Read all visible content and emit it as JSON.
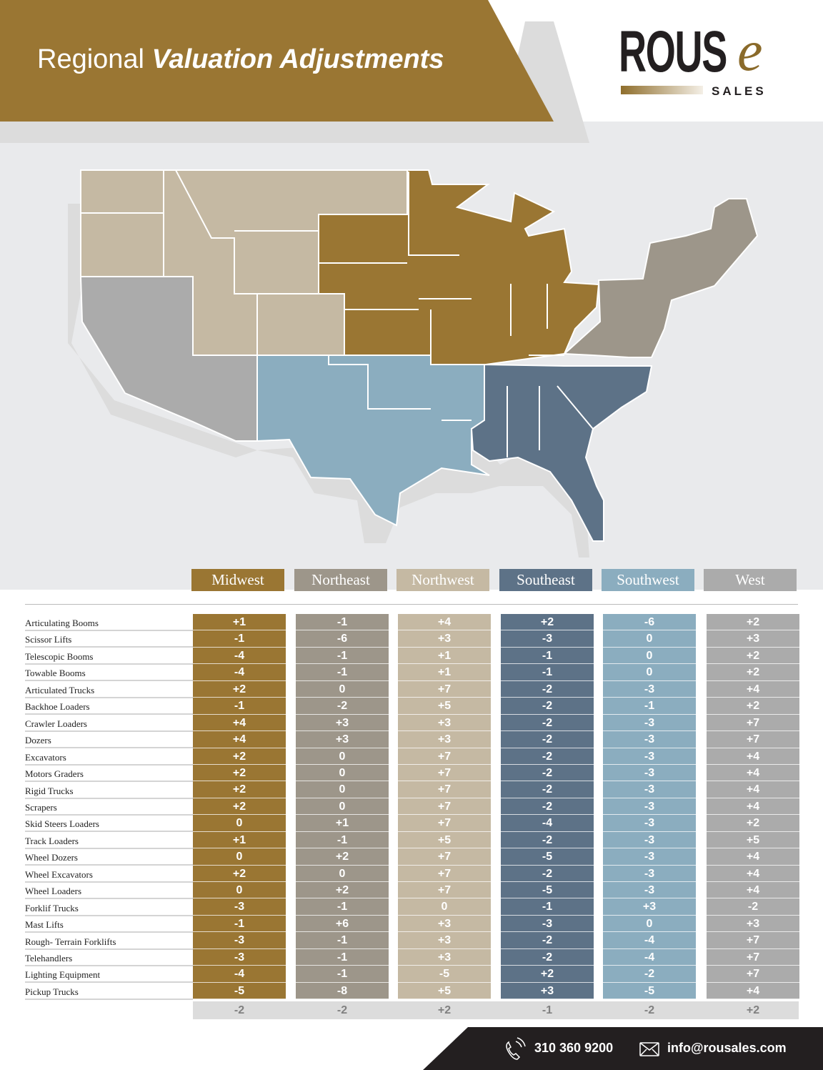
{
  "header": {
    "title_plain": "Regional",
    "title_bold": "Valuation Adjustments"
  },
  "logo": {
    "word": "ROUS",
    "e": "e",
    "tagline": "SALES"
  },
  "colors": {
    "Midwest": "#9a7633",
    "Northeast": "#9d968a",
    "Northwest": "#c5b9a3",
    "Southeast": "#5d7287",
    "Southwest": "#8badbf",
    "West": "#ababab",
    "header": "#9a7633"
  },
  "regions": [
    "Midwest",
    "Northeast",
    "Northwest",
    "Southeast",
    "Southwest",
    "West"
  ],
  "table": {
    "rows": [
      {
        "label": "Articulating Booms",
        "values": [
          "+1",
          "-1",
          "+4",
          "+2",
          "-6",
          "+2"
        ]
      },
      {
        "label": "Scissor Lifts",
        "values": [
          "-1",
          "-6",
          "+3",
          "-3",
          "0",
          "+3"
        ]
      },
      {
        "label": "Telescopic Booms",
        "values": [
          "-4",
          "-1",
          "+1",
          "-1",
          "0",
          "+2"
        ]
      },
      {
        "label": "Towable Booms",
        "values": [
          "-4",
          "-1",
          "+1",
          "-1",
          "0",
          "+2"
        ]
      },
      {
        "label": "Articulated Trucks",
        "values": [
          "+2",
          "0",
          "+7",
          "-2",
          "-3",
          "+4"
        ]
      },
      {
        "label": "Backhoe Loaders",
        "values": [
          "-1",
          "-2",
          "+5",
          "-2",
          "-1",
          "+2"
        ]
      },
      {
        "label": "Crawler Loaders",
        "values": [
          "+4",
          "+3",
          "+3",
          "-2",
          "-3",
          "+7"
        ]
      },
      {
        "label": "Dozers",
        "values": [
          "+4",
          "+3",
          "+3",
          "-2",
          "-3",
          "+7"
        ]
      },
      {
        "label": "Excavators",
        "values": [
          "+2",
          "0",
          "+7",
          "-2",
          "-3",
          "+4"
        ]
      },
      {
        "label": "Motors Graders",
        "values": [
          "+2",
          "0",
          "+7",
          "-2",
          "-3",
          "+4"
        ]
      },
      {
        "label": "Rigid Trucks",
        "values": [
          "+2",
          "0",
          "+7",
          "-2",
          "-3",
          "+4"
        ]
      },
      {
        "label": "Scrapers",
        "values": [
          "+2",
          "0",
          "+7",
          "-2",
          "-3",
          "+4"
        ]
      },
      {
        "label": "Skid Steers Loaders",
        "values": [
          "0",
          "+1",
          "+7",
          "-4",
          "-3",
          "+2"
        ]
      },
      {
        "label": "Track Loaders",
        "values": [
          "+1",
          "-1",
          "+5",
          "-2",
          "-3",
          "+5"
        ]
      },
      {
        "label": "Wheel Dozers",
        "values": [
          "0",
          "+2",
          "+7",
          "-5",
          "-3",
          "+4"
        ]
      },
      {
        "label": "Wheel Excavators",
        "values": [
          "+2",
          "0",
          "+7",
          "-2",
          "-3",
          "+4"
        ]
      },
      {
        "label": "Wheel Loaders",
        "values": [
          "0",
          "+2",
          "+7",
          "-5",
          "-3",
          "+4"
        ]
      },
      {
        "label": "Forklif Trucks",
        "values": [
          "-3",
          "-1",
          "0",
          "-1",
          "+3",
          "-2"
        ]
      },
      {
        "label": "Mast Lifts",
        "values": [
          "-1",
          "+6",
          "+3",
          "-3",
          "0",
          "+3"
        ]
      },
      {
        "label": "Rough- Terrain Forklifts",
        "values": [
          "-3",
          "-1",
          "+3",
          "-2",
          "-4",
          "+7"
        ]
      },
      {
        "label": "Telehandlers",
        "values": [
          "-3",
          "-1",
          "+3",
          "-2",
          "-4",
          "+7"
        ]
      },
      {
        "label": "Lighting Equipment",
        "values": [
          "-4",
          "-1",
          "-5",
          "+2",
          "-2",
          "+7"
        ]
      },
      {
        "label": "Pickup Trucks",
        "values": [
          "-5",
          "-8",
          "+5",
          "+3",
          "-5",
          "+4"
        ]
      }
    ],
    "averages": [
      "-2",
      "-2",
      "+2",
      "-1",
      "-2",
      "+2"
    ]
  },
  "footer": {
    "phone": "310 360 9200",
    "email": "info@rousales.com",
    "icons": [
      "phone-icon",
      "mail-icon"
    ]
  }
}
